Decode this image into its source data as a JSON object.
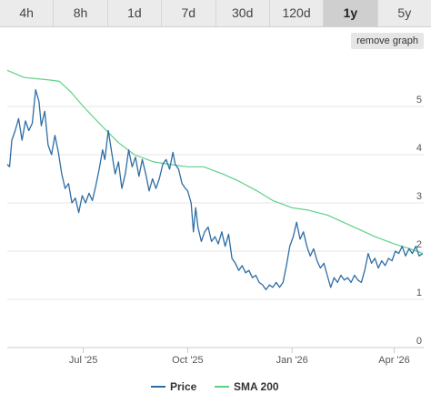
{
  "tabs": [
    {
      "label": "4h",
      "active": false
    },
    {
      "label": "8h",
      "active": false
    },
    {
      "label": "1d",
      "active": false
    },
    {
      "label": "7d",
      "active": false
    },
    {
      "label": "30d",
      "active": false
    },
    {
      "label": "120d",
      "active": false
    },
    {
      "label": "1y",
      "active": true
    },
    {
      "label": "5y",
      "active": false
    }
  ],
  "remove_button": "remove graph",
  "chart_data": {
    "type": "line",
    "x_range": [
      "2025-04-25",
      "2026-04-27"
    ],
    "ylim": [
      0,
      6
    ],
    "yticks": [
      0,
      1,
      2,
      3,
      4,
      5
    ],
    "xticks": [
      {
        "label": "Jul '25",
        "date": "2025-07-01"
      },
      {
        "label": "Oct '25",
        "date": "2025-10-01"
      },
      {
        "label": "Jan '26",
        "date": "2026-01-01"
      },
      {
        "label": "Apr '26",
        "date": "2026-04-01"
      }
    ],
    "grid": true,
    "legend": "bottom-center",
    "colors": {
      "price": "#2e6da4",
      "sma": "#5fd185"
    },
    "series": [
      {
        "name": "Price",
        "key": "price",
        "points": [
          [
            "2025-04-25",
            3.8
          ],
          [
            "2025-04-27",
            3.75
          ],
          [
            "2025-04-29",
            4.3
          ],
          [
            "2025-05-02",
            4.5
          ],
          [
            "2025-05-05",
            4.75
          ],
          [
            "2025-05-08",
            4.3
          ],
          [
            "2025-05-11",
            4.7
          ],
          [
            "2025-05-14",
            4.5
          ],
          [
            "2025-05-17",
            4.65
          ],
          [
            "2025-05-20",
            5.35
          ],
          [
            "2025-05-23",
            5.1
          ],
          [
            "2025-05-25",
            4.6
          ],
          [
            "2025-05-28",
            4.9
          ],
          [
            "2025-05-31",
            4.2
          ],
          [
            "2025-06-03",
            4.0
          ],
          [
            "2025-06-06",
            4.4
          ],
          [
            "2025-06-09",
            4.05
          ],
          [
            "2025-06-12",
            3.6
          ],
          [
            "2025-06-15",
            3.3
          ],
          [
            "2025-06-18",
            3.4
          ],
          [
            "2025-06-21",
            3.0
          ],
          [
            "2025-06-24",
            3.1
          ],
          [
            "2025-06-27",
            2.8
          ],
          [
            "2025-06-30",
            3.15
          ],
          [
            "2025-07-03",
            3.0
          ],
          [
            "2025-07-06",
            3.2
          ],
          [
            "2025-07-09",
            3.05
          ],
          [
            "2025-07-12",
            3.35
          ],
          [
            "2025-07-15",
            3.7
          ],
          [
            "2025-07-18",
            4.1
          ],
          [
            "2025-07-20",
            3.9
          ],
          [
            "2025-07-23",
            4.5
          ],
          [
            "2025-07-26",
            4.05
          ],
          [
            "2025-07-29",
            3.6
          ],
          [
            "2025-08-01",
            3.85
          ],
          [
            "2025-08-04",
            3.3
          ],
          [
            "2025-08-07",
            3.6
          ],
          [
            "2025-08-10",
            4.1
          ],
          [
            "2025-08-13",
            3.75
          ],
          [
            "2025-08-16",
            3.95
          ],
          [
            "2025-08-19",
            3.55
          ],
          [
            "2025-08-22",
            3.9
          ],
          [
            "2025-08-25",
            3.6
          ],
          [
            "2025-08-28",
            3.25
          ],
          [
            "2025-08-31",
            3.5
          ],
          [
            "2025-09-03",
            3.3
          ],
          [
            "2025-09-06",
            3.5
          ],
          [
            "2025-09-09",
            3.8
          ],
          [
            "2025-09-12",
            3.9
          ],
          [
            "2025-09-15",
            3.7
          ],
          [
            "2025-09-18",
            4.05
          ],
          [
            "2025-09-20",
            3.8
          ],
          [
            "2025-09-23",
            3.7
          ],
          [
            "2025-09-26",
            3.4
          ],
          [
            "2025-09-29",
            3.3
          ],
          [
            "2025-10-01",
            3.25
          ],
          [
            "2025-10-04",
            3.0
          ],
          [
            "2025-10-06",
            2.4
          ],
          [
            "2025-10-08",
            2.9
          ],
          [
            "2025-10-10",
            2.5
          ],
          [
            "2025-10-13",
            2.2
          ],
          [
            "2025-10-16",
            2.4
          ],
          [
            "2025-10-19",
            2.5
          ],
          [
            "2025-10-22",
            2.2
          ],
          [
            "2025-10-25",
            2.3
          ],
          [
            "2025-10-28",
            2.15
          ],
          [
            "2025-10-31",
            2.4
          ],
          [
            "2025-11-03",
            2.1
          ],
          [
            "2025-11-06",
            2.35
          ],
          [
            "2025-11-09",
            1.85
          ],
          [
            "2025-11-12",
            1.75
          ],
          [
            "2025-11-15",
            1.6
          ],
          [
            "2025-11-18",
            1.7
          ],
          [
            "2025-11-21",
            1.55
          ],
          [
            "2025-11-24",
            1.6
          ],
          [
            "2025-11-27",
            1.45
          ],
          [
            "2025-11-30",
            1.5
          ],
          [
            "2025-12-03",
            1.35
          ],
          [
            "2025-12-06",
            1.3
          ],
          [
            "2025-12-09",
            1.2
          ],
          [
            "2025-12-12",
            1.3
          ],
          [
            "2025-12-15",
            1.25
          ],
          [
            "2025-12-18",
            1.35
          ],
          [
            "2025-12-21",
            1.25
          ],
          [
            "2025-12-24",
            1.35
          ],
          [
            "2025-12-27",
            1.7
          ],
          [
            "2025-12-30",
            2.1
          ],
          [
            "2026-01-02",
            2.3
          ],
          [
            "2026-01-05",
            2.6
          ],
          [
            "2026-01-08",
            2.25
          ],
          [
            "2026-01-11",
            2.4
          ],
          [
            "2026-01-14",
            2.1
          ],
          [
            "2026-01-17",
            1.9
          ],
          [
            "2026-01-20",
            2.05
          ],
          [
            "2026-01-23",
            1.8
          ],
          [
            "2026-01-26",
            1.65
          ],
          [
            "2026-01-29",
            1.75
          ],
          [
            "2026-02-01",
            1.5
          ],
          [
            "2026-02-04",
            1.25
          ],
          [
            "2026-02-07",
            1.45
          ],
          [
            "2026-02-10",
            1.35
          ],
          [
            "2026-02-13",
            1.5
          ],
          [
            "2026-02-16",
            1.4
          ],
          [
            "2026-02-19",
            1.45
          ],
          [
            "2026-02-22",
            1.35
          ],
          [
            "2026-02-25",
            1.5
          ],
          [
            "2026-02-28",
            1.4
          ],
          [
            "2026-03-03",
            1.35
          ],
          [
            "2026-03-06",
            1.6
          ],
          [
            "2026-03-09",
            1.95
          ],
          [
            "2026-03-12",
            1.75
          ],
          [
            "2026-03-15",
            1.85
          ],
          [
            "2026-03-18",
            1.65
          ],
          [
            "2026-03-21",
            1.8
          ],
          [
            "2026-03-24",
            1.7
          ],
          [
            "2026-03-27",
            1.85
          ],
          [
            "2026-03-30",
            1.8
          ],
          [
            "2026-04-02",
            2.0
          ],
          [
            "2026-04-05",
            1.95
          ],
          [
            "2026-04-08",
            2.1
          ],
          [
            "2026-04-11",
            1.9
          ],
          [
            "2026-04-14",
            2.05
          ],
          [
            "2026-04-17",
            1.95
          ],
          [
            "2026-04-20",
            2.1
          ],
          [
            "2026-04-23",
            1.9
          ],
          [
            "2026-04-26",
            1.95
          ]
        ]
      },
      {
        "name": "SMA 200",
        "key": "sma",
        "points": [
          [
            "2025-04-25",
            5.75
          ],
          [
            "2025-05-10",
            5.6
          ],
          [
            "2025-06-01",
            5.55
          ],
          [
            "2025-06-10",
            5.52
          ],
          [
            "2025-06-20",
            5.3
          ],
          [
            "2025-07-01",
            5.0
          ],
          [
            "2025-07-15",
            4.65
          ],
          [
            "2025-08-01",
            4.25
          ],
          [
            "2025-08-15",
            4.0
          ],
          [
            "2025-09-01",
            3.85
          ],
          [
            "2025-09-15",
            3.8
          ],
          [
            "2025-10-01",
            3.75
          ],
          [
            "2025-10-15",
            3.75
          ],
          [
            "2025-11-01",
            3.6
          ],
          [
            "2025-11-15",
            3.45
          ],
          [
            "2025-12-01",
            3.25
          ],
          [
            "2025-12-15",
            3.05
          ],
          [
            "2026-01-01",
            2.9
          ],
          [
            "2026-01-15",
            2.85
          ],
          [
            "2026-02-01",
            2.75
          ],
          [
            "2026-02-15",
            2.6
          ],
          [
            "2026-03-01",
            2.45
          ],
          [
            "2026-03-15",
            2.3
          ],
          [
            "2026-04-01",
            2.15
          ],
          [
            "2026-04-15",
            2.05
          ],
          [
            "2026-04-26",
            1.95
          ]
        ]
      }
    ]
  }
}
